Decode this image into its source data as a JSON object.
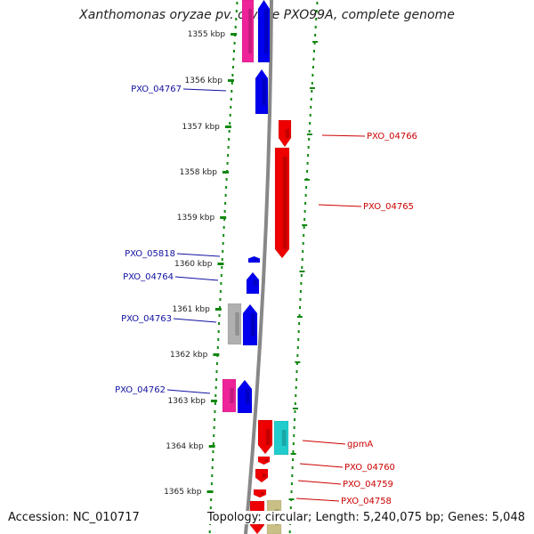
{
  "title": "Xanthomonas oryzae pv. oryzae PXO99A, complete genome",
  "footer": {
    "accession": "Accession: NC_010717",
    "summary": "Topology: circular; Length: 5,240,075 bp; Genes: 5,048"
  },
  "colors": {
    "gene_pink": "#ee2299",
    "gene_blue": "#0000ee",
    "gene_red": "#ee0000",
    "gene_grey": "#b0b0b0",
    "gene_cyan": "#22cccc",
    "gene_khaki": "#c8c084",
    "backbone": "#888888",
    "ticks": "#118811",
    "label_left": "#1010a0",
    "label_right": "#cc0000"
  },
  "ruler": [
    {
      "label": "1355 kbp"
    },
    {
      "label": "1356 kbp"
    },
    {
      "label": "1357 kbp"
    },
    {
      "label": "1358 kbp"
    },
    {
      "label": "1359 kbp"
    },
    {
      "label": "1360 kbp"
    },
    {
      "label": "1361 kbp"
    },
    {
      "label": "1362 kbp"
    },
    {
      "label": "1363 kbp"
    },
    {
      "label": "1364 kbp"
    },
    {
      "label": "1365 kbp"
    }
  ],
  "gene_labels": {
    "left": [
      "PXO_04767",
      "PXO_05818",
      "PXO_04764",
      "PXO_04763",
      "PXO_04762"
    ],
    "right": [
      "PXO_04766",
      "PXO_04765",
      "gpmA",
      "PXO_04760",
      "PXO_04759",
      "PXO_04758"
    ]
  }
}
